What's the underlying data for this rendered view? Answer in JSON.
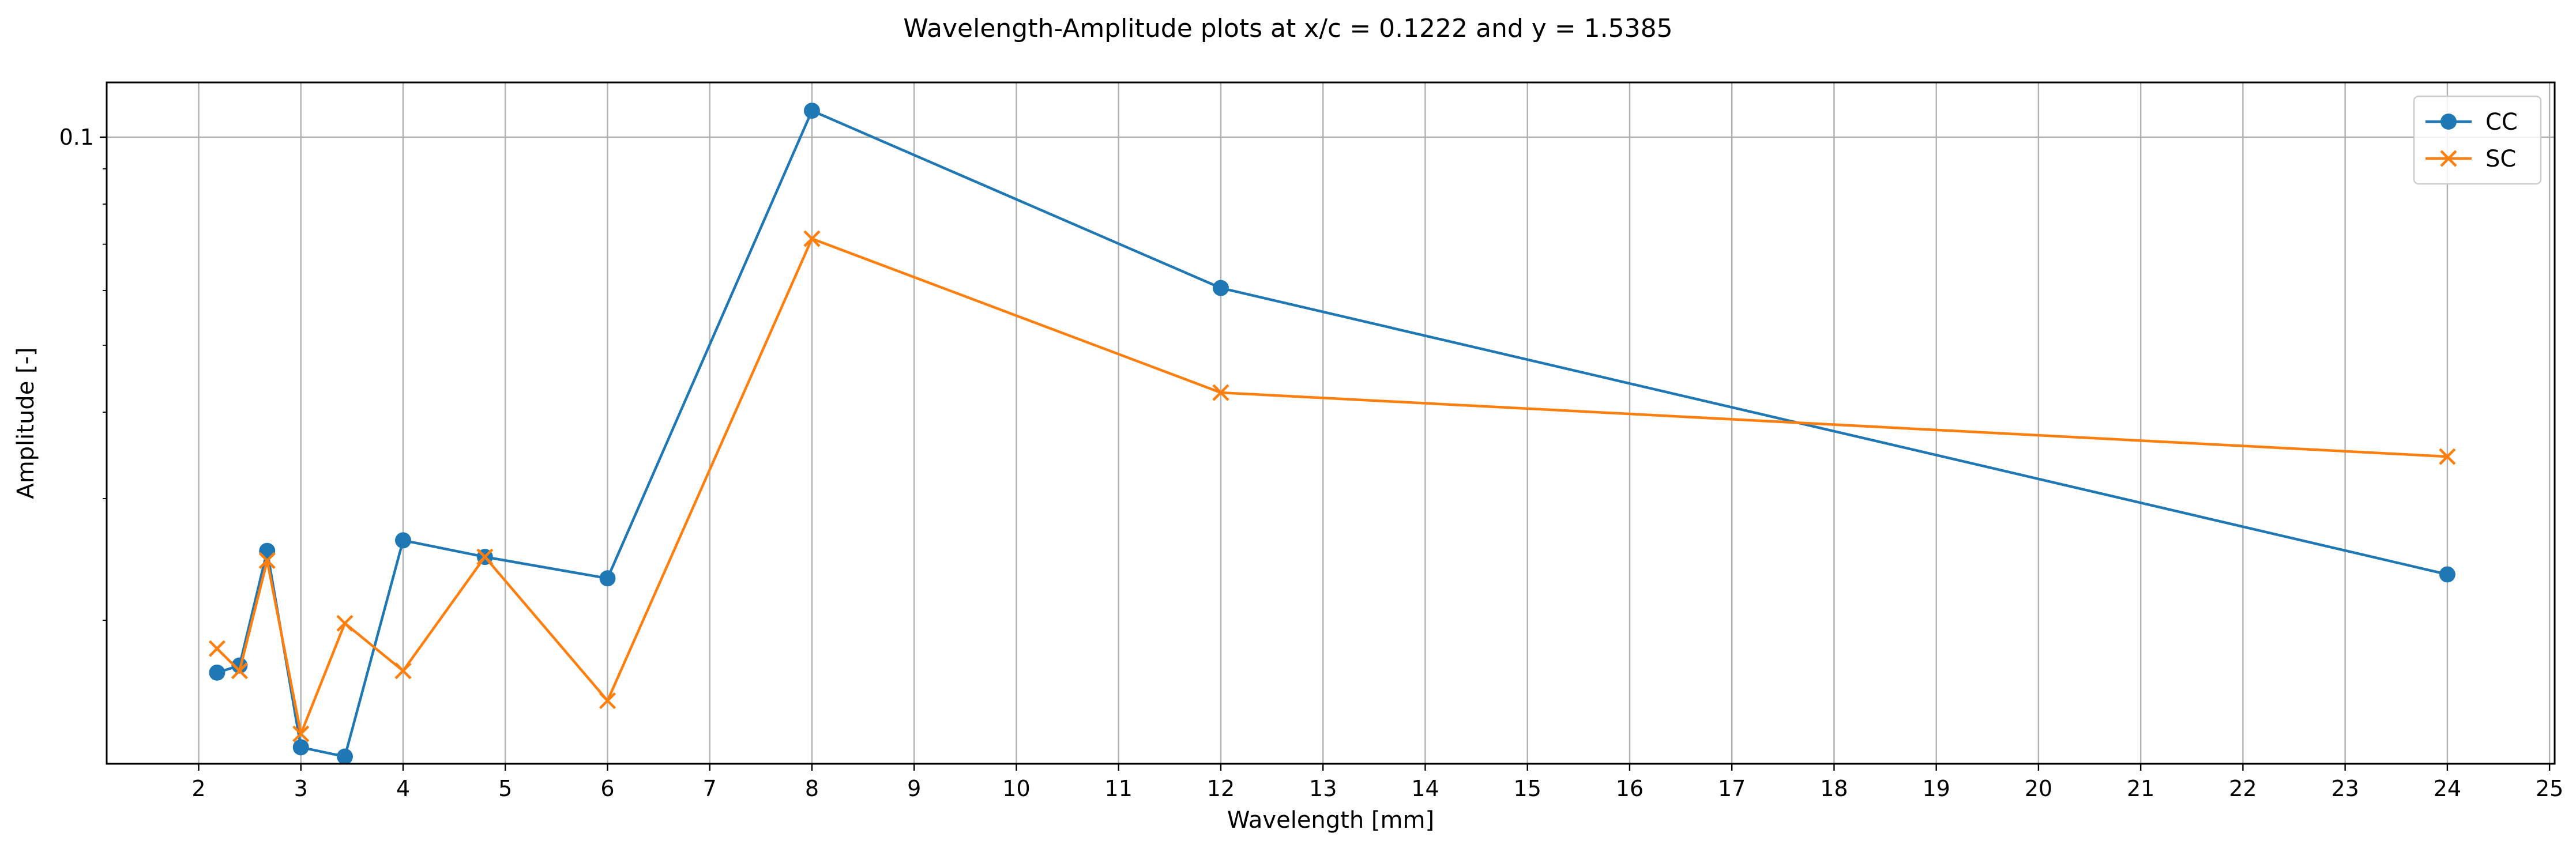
{
  "chart_data": {
    "type": "line",
    "title": "Wavelength-Amplitude plots at x/c = 0.1222 and y = 1.5385",
    "xlabel": "Wavelength [mm]",
    "ylabel": "Amplitude [-]",
    "x_ticks": [
      2,
      3,
      4,
      5,
      6,
      7,
      8,
      9,
      10,
      11,
      12,
      13,
      14,
      15,
      16,
      17,
      18,
      19,
      20,
      21,
      22,
      23,
      24,
      25
    ],
    "y_scale": "log",
    "y_ticks": [
      {
        "value": 0.1,
        "label": "0.1"
      }
    ],
    "xlim": [
      1.1,
      25.05
    ],
    "ylim": [
      0.0124,
      0.12
    ],
    "grid": true,
    "legend_position": "top-right",
    "series": [
      {
        "name": "CC",
        "color": "#1f77b4",
        "marker": "circle",
        "x": [
          2.18,
          2.4,
          2.67,
          3.0,
          3.43,
          4.0,
          4.8,
          6.0,
          8.0,
          12.0,
          24.0
        ],
        "y": [
          0.0168,
          0.0172,
          0.0252,
          0.0131,
          0.0127,
          0.0261,
          0.0247,
          0.023,
          0.1092,
          0.0605,
          0.0233
        ]
      },
      {
        "name": "SC",
        "color": "#ff7f0e",
        "marker": "x",
        "x": [
          2.18,
          2.4,
          2.67,
          3.0,
          3.43,
          4.0,
          4.8,
          6.0,
          8.0,
          12.0,
          24.0
        ],
        "y": [
          0.0182,
          0.0169,
          0.0244,
          0.0137,
          0.0198,
          0.0169,
          0.0247,
          0.0153,
          0.0713,
          0.0427,
          0.0345
        ]
      }
    ]
  }
}
